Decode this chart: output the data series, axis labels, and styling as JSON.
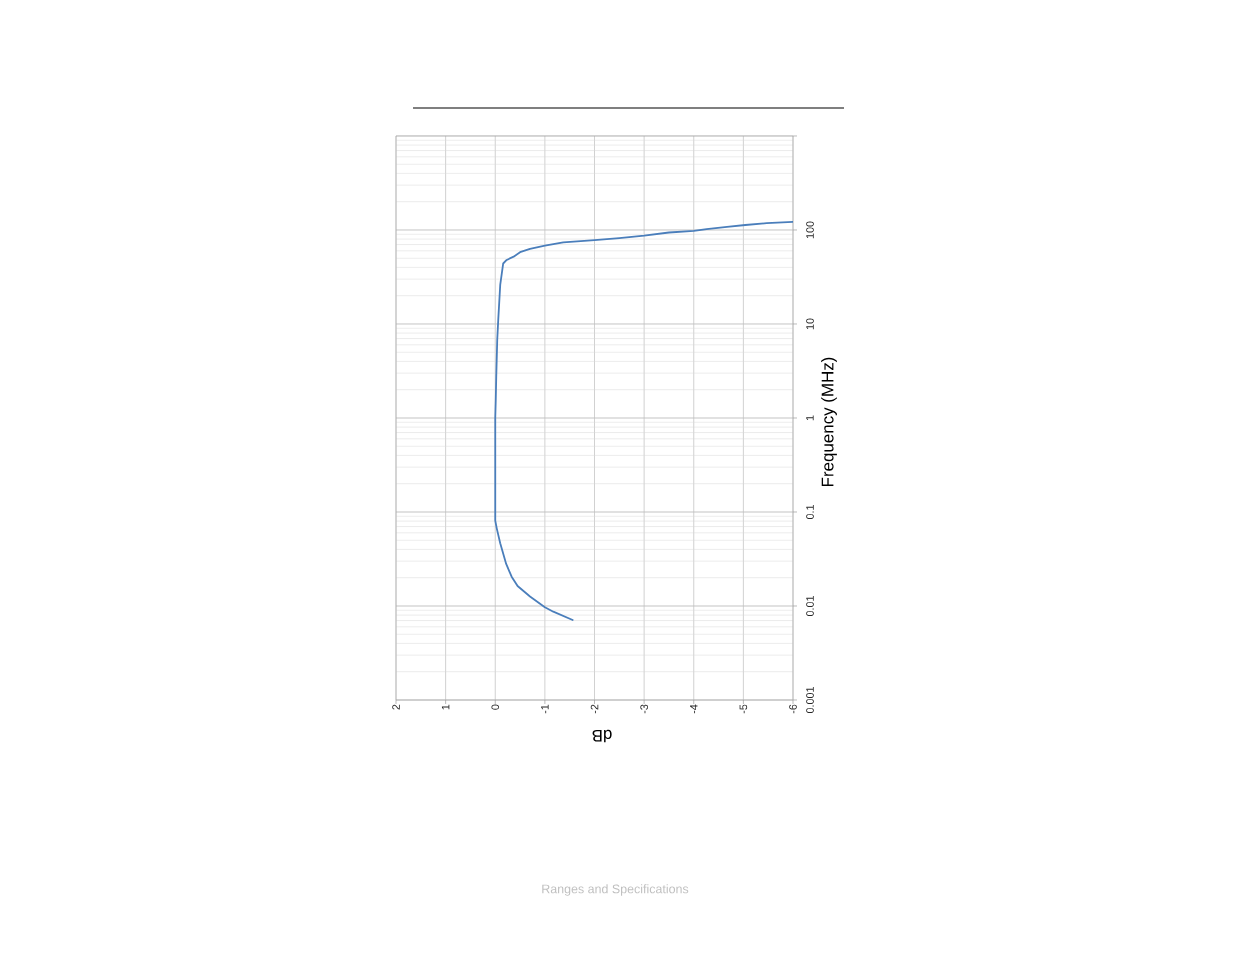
{
  "chart_data": {
    "type": "line",
    "xlabel": "dB",
    "ylabel": "Frequency (MHz)",
    "annotations": [
      "Ranges and Specifications"
    ],
    "x": [
      -1.56,
      -1.17,
      -1.0,
      -0.7,
      -0.45,
      -0.33,
      -0.22,
      -0.1,
      -0.03,
      0.0,
      0.0,
      -0.01,
      -0.02,
      -0.04,
      -0.06,
      -0.1,
      -0.16,
      -0.23,
      -0.37,
      -0.5,
      -0.7,
      -1.0,
      -1.37,
      -2.0,
      -2.5,
      -3.0,
      -3.5,
      -4.0,
      -4.26,
      -4.67,
      -5.04,
      -5.47,
      -6.0
    ],
    "series": [
      {
        "color": "#4a7ebb",
        "values": [
          0.0071,
          0.0087,
          0.0097,
          0.0126,
          0.0163,
          0.0205,
          0.028,
          0.0465,
          0.067,
          0.081,
          1,
          1.55,
          2.75,
          6.8,
          11,
          26,
          44,
          48,
          52,
          58,
          63,
          68,
          74,
          78,
          82,
          87,
          94,
          98,
          102,
          108,
          113,
          118,
          122
        ]
      }
    ],
    "xlim": [
      2,
      -6
    ],
    "ylim": [
      0.001,
      1000
    ],
    "log": "y",
    "xticks": [
      2,
      1,
      0,
      -1,
      -2,
      -3,
      -4,
      -5,
      -6
    ],
    "yticks": [
      0.001,
      0.01,
      0.1,
      1,
      10,
      100,
      {
        "value": 1000,
        "label": null
      }
    ],
    "grid": true,
    "marker": "none",
    "line_style": "solid"
  }
}
